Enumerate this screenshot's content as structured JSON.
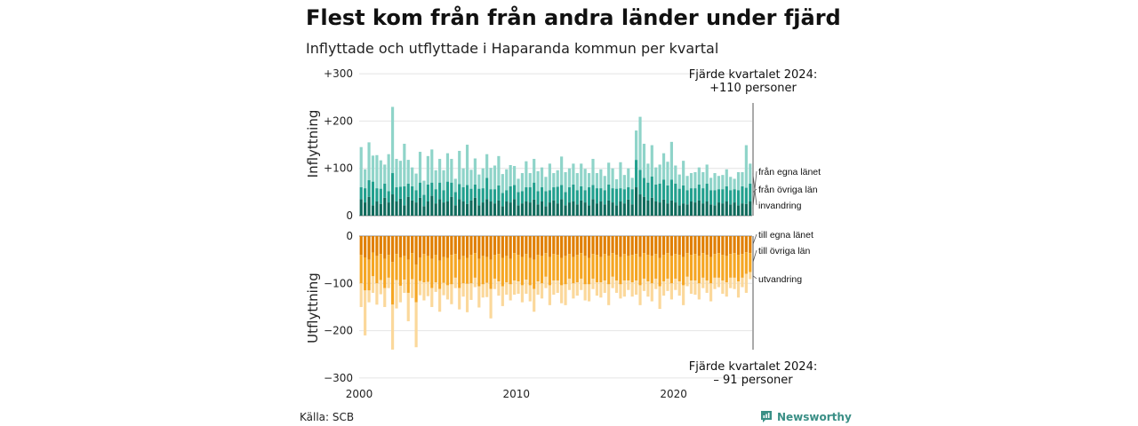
{
  "title": "Flest kom från från andra länder under fjärde kvartalet",
  "subtitle": "Inflyttade och utflyttade i Haparanda kommun per kvartal",
  "source": "Källa: SCB",
  "brand": "Newsworthy",
  "colors": {
    "inflow": [
      "#0f6b5c",
      "#22a08e",
      "#8fd4c9"
    ],
    "outflow": [
      "#e07f00",
      "#f5a623",
      "#fbd89b"
    ],
    "grid": "#e4e4e4",
    "brand": "#3a8f86"
  },
  "annotations": {
    "inflow": [
      "Fjärde kvartalet 2024:",
      "+110 personer"
    ],
    "outflow": [
      "Fjärde kvartalet 2024:",
      "– 91 personer"
    ]
  },
  "chart_data": {
    "type": "bar",
    "stacked": true,
    "start": "2000 Q1",
    "end": "2024 Q4",
    "x_ticks": [
      "2000",
      "2010",
      "2020"
    ],
    "panels": [
      {
        "ylabel": "Inflyttning",
        "ylim": [
          0,
          300
        ],
        "y_ticks": [
          "0",
          "+100",
          "+200",
          "+300"
        ],
        "series": [
          {
            "name": "från egna länet",
            "values": [
              35,
              28,
              40,
              22,
              30,
              25,
              38,
              28,
              45,
              30,
              36,
              22,
              40,
              32,
              28,
              38,
              20,
              30,
              42,
              26,
              35,
              28,
              30,
              40,
              22,
              35,
              30,
              25,
              32,
              38,
              22,
              28,
              35,
              30,
              26,
              32,
              20,
              30,
              28,
              35,
              22,
              26,
              30,
              28,
              34,
              24,
              30,
              20,
              28,
              32,
              26,
              35,
              22,
              28,
              30,
              24,
              32,
              28,
              22,
              35,
              26,
              30,
              24,
              32,
              28,
              22,
              30,
              26,
              34,
              24,
              60,
              45,
              40,
              32,
              38,
              30,
              28,
              34,
              26,
              32,
              28,
              22,
              26,
              24,
              30,
              28,
              32,
              26,
              30,
              24,
              22,
              28,
              26,
              30,
              24,
              28,
              22,
              26,
              25,
              30
            ]
          },
          {
            "name": "från övriga län",
            "values": [
              25,
              30,
              35,
              50,
              28,
              32,
              30,
              24,
              45,
              30,
              25,
              40,
              28,
              30,
              26,
              32,
              24,
              36,
              28,
              30,
              35,
              26,
              42,
              30,
              28,
              32,
              30,
              40,
              25,
              28,
              35,
              30,
              45,
              26,
              30,
              32,
              28,
              24,
              34,
              30,
              28,
              26,
              30,
              32,
              36,
              28,
              30,
              32,
              26,
              28,
              35,
              30,
              28,
              32,
              36,
              30,
              30,
              26,
              38,
              30,
              32,
              28,
              30,
              34,
              30,
              35,
              28,
              30,
              26,
              32,
              58,
              52,
              40,
              38,
              45,
              36,
              40,
              42,
              38,
              44,
              40,
              35,
              38,
              30,
              28,
              30,
              34,
              32,
              38,
              30,
              32,
              28,
              30,
              32,
              30,
              28,
              32,
              36,
              34,
              38
            ]
          },
          {
            "name": "invandring",
            "values": [
              85,
              40,
              80,
              55,
              70,
              60,
              40,
              78,
              140,
              60,
              55,
              90,
              50,
              40,
              35,
              65,
              30,
              60,
              70,
              40,
              50,
              42,
              60,
              50,
              28,
              70,
              40,
              85,
              40,
              55,
              30,
              42,
              50,
              45,
              50,
              62,
              40,
              44,
              45,
              40,
              28,
              38,
              55,
              30,
              50,
              42,
              42,
              30,
              56,
              30,
              35,
              60,
              42,
              40,
              44,
              36,
              48,
              45,
              30,
              55,
              32,
              40,
              30,
              46,
              42,
              20,
              55,
              30,
              40,
              24,
              62,
              112,
              72,
              40,
              66,
              36,
              40,
              56,
              50,
              80,
              38,
              30,
              52,
              30,
              32,
              34,
              36,
              34,
              40,
              26,
              36,
              28,
              30,
              36,
              28,
              22,
              38,
              30,
              90,
              42
            ]
          }
        ]
      },
      {
        "ylabel": "Utflyttning",
        "ylim": [
          -300,
          0
        ],
        "y_ticks": [
          "0",
          "−100",
          "−200",
          "−300"
        ],
        "series": [
          {
            "name": "till egna länet",
            "values": [
              -40,
              -45,
              -50,
              -35,
              -42,
              -38,
              -48,
              -40,
              -55,
              -38,
              -45,
              -42,
              -50,
              -36,
              -60,
              -45,
              -38,
              -42,
              -48,
              -40,
              -52,
              -44,
              -46,
              -40,
              -38,
              -50,
              -42,
              -46,
              -40,
              -36,
              -48,
              -42,
              -44,
              -50,
              -40,
              -38,
              -46,
              -42,
              -48,
              -36,
              -40,
              -44,
              -38,
              -46,
              -50,
              -40,
              -42,
              -36,
              -44,
              -38,
              -40,
              -46,
              -42,
              -38,
              -44,
              -40,
              -36,
              -42,
              -46,
              -38,
              -40,
              -44,
              -38,
              -42,
              -36,
              -40,
              -44,
              -38,
              -42,
              -40,
              -38,
              -44,
              -36,
              -40,
              -42,
              -38,
              -46,
              -40,
              -36,
              -42,
              -38,
              -40,
              -44,
              -36,
              -40,
              -38,
              -42,
              -36,
              -40,
              -44,
              -38,
              -36,
              -40,
              -42,
              -38,
              -36,
              -40,
              -38,
              -34,
              -36
            ]
          },
          {
            "name": "till övriga län",
            "values": [
              -60,
              -70,
              -65,
              -50,
              -58,
              -55,
              -62,
              -48,
              -90,
              -55,
              -60,
              -50,
              -70,
              -55,
              -80,
              -50,
              -60,
              -55,
              -62,
              -58,
              -60,
              -55,
              -58,
              -62,
              -50,
              -60,
              -58,
              -55,
              -60,
              -52,
              -58,
              -60,
              -55,
              -62,
              -50,
              -58,
              -60,
              -56,
              -54,
              -58,
              -56,
              -60,
              -54,
              -58,
              -62,
              -56,
              -58,
              -50,
              -60,
              -56,
              -54,
              -58,
              -60,
              -52,
              -56,
              -58,
              -54,
              -60,
              -56,
              -52,
              -58,
              -54,
              -56,
              -60,
              -50,
              -54,
              -58,
              -56,
              -52,
              -58,
              -56,
              -60,
              -54,
              -56,
              -58,
              -52,
              -60,
              -56,
              -54,
              -58,
              -52,
              -56,
              -60,
              -50,
              -54,
              -56,
              -58,
              -52,
              -54,
              -56,
              -50,
              -52,
              -54,
              -56,
              -50,
              -52,
              -56,
              -50,
              -46,
              -40
            ]
          },
          {
            "name": "utvandring",
            "values": [
              -50,
              -95,
              -25,
              -35,
              -45,
              -30,
              -40,
              -22,
              -95,
              -60,
              -35,
              -28,
              -60,
              -40,
              -95,
              -30,
              -38,
              -30,
              -40,
              -20,
              -48,
              -26,
              -30,
              -42,
              -22,
              -45,
              -28,
              -60,
              -35,
              -20,
              -45,
              -28,
              -30,
              -62,
              -22,
              -30,
              -42,
              -26,
              -34,
              -30,
              -26,
              -36,
              -30,
              -34,
              -48,
              -28,
              -32,
              -24,
              -42,
              -30,
              -26,
              -38,
              -44,
              -24,
              -32,
              -28,
              -24,
              -34,
              -36,
              -22,
              -28,
              -32,
              -26,
              -44,
              -24,
              -26,
              -30,
              -34,
              -20,
              -30,
              -30,
              -42,
              -26,
              -32,
              -38,
              -22,
              -48,
              -30,
              -26,
              -34,
              -24,
              -30,
              -42,
              -20,
              -28,
              -30,
              -34,
              -22,
              -26,
              -38,
              -24,
              -20,
              -28,
              -30,
              -22,
              -24,
              -34,
              -20,
              -40,
              -15
            ]
          }
        ]
      }
    ],
    "last_quarter_total": {
      "inflow": 110,
      "outflow": -91
    }
  }
}
